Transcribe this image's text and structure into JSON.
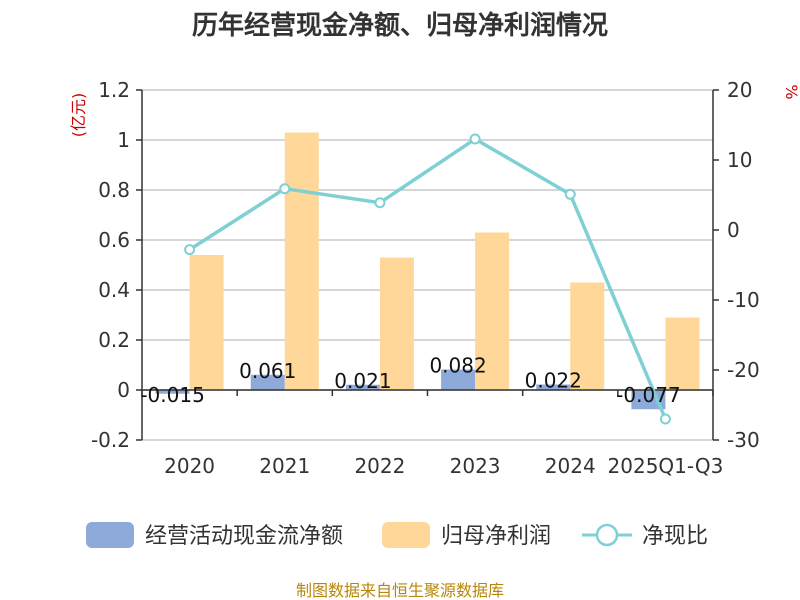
{
  "chart_data": {
    "type": "bar+line",
    "title": "历年经营现金净额、归母净利润情况",
    "categories": [
      "2020",
      "2021",
      "2022",
      "2023",
      "2024",
      "2025Q1-Q3"
    ],
    "series": [
      {
        "name": "经营活动现金流净额",
        "type": "bar",
        "axis": "left",
        "values": [
          -0.015,
          0.061,
          0.021,
          0.082,
          0.022,
          -0.077
        ],
        "labels": [
          "-0.015",
          "0.061",
          "0.021",
          "0.082",
          "0.022",
          "-0.077"
        ]
      },
      {
        "name": "归母净利润",
        "type": "bar",
        "axis": "left",
        "values": [
          0.54,
          1.03,
          0.53,
          0.63,
          0.43,
          0.29
        ]
      },
      {
        "name": "净现比",
        "type": "line",
        "axis": "right",
        "values": [
          -2.8,
          5.9,
          3.9,
          13.0,
          5.1,
          -27.0
        ]
      }
    ],
    "y_left": {
      "unit": "(亿元)",
      "ylim": [
        -0.2,
        1.2
      ],
      "ticks": [
        "-0.2",
        "0",
        "0.2",
        "0.4",
        "0.6",
        "0.8",
        "1",
        "1.2"
      ]
    },
    "y_right": {
      "unit": "%",
      "ylim": [
        -30,
        20
      ],
      "ticks": [
        "-30",
        "-20",
        "-10",
        "0",
        "10",
        "20"
      ]
    },
    "colors": {
      "cash": "#8eaadb",
      "profit": "#ffd899",
      "ratio": "#7fd0d4"
    },
    "source": "制图数据来自恒生聚源数据库"
  }
}
